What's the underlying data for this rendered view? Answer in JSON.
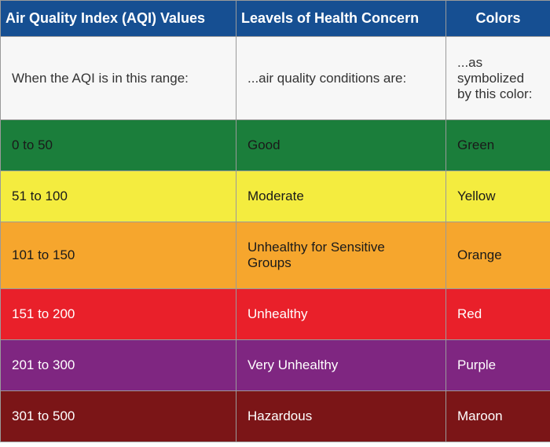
{
  "headers": [
    "Air Quality Index (AQI) Values",
    "Leavels of Health Concern",
    "Colors"
  ],
  "subheader": [
    "When the AQI is in this range:",
    "...air quality conditions are:",
    "...as symbolized by this color:"
  ],
  "rows": [
    {
      "range": "0 to 50",
      "level": "Good",
      "color": "Green",
      "bg": "#1b7e3b",
      "fg": "#1a1a1a"
    },
    {
      "range": "51 to 100",
      "level": "Moderate",
      "color": "Yellow",
      "bg": "#f4ec3f",
      "fg": "#1a1a1a"
    },
    {
      "range": "101 to 150",
      "level": "Unhealthy for Sensitive Groups",
      "color": "Orange",
      "bg": "#f6a62d",
      "fg": "#1a1a1a"
    },
    {
      "range": "151 to 200",
      "level": "Unhealthy",
      "color": "Red",
      "bg": "#e9202a",
      "fg": "#ffffff"
    },
    {
      "range": "201 to 300",
      "level": "Very Unhealthy",
      "color": "Purple",
      "bg": "#7f2681",
      "fg": "#ffffff"
    },
    {
      "range": "301 to 500",
      "level": "Hazardous",
      "color": "Maroon",
      "bg": "#7b1517",
      "fg": "#ffffff"
    }
  ]
}
